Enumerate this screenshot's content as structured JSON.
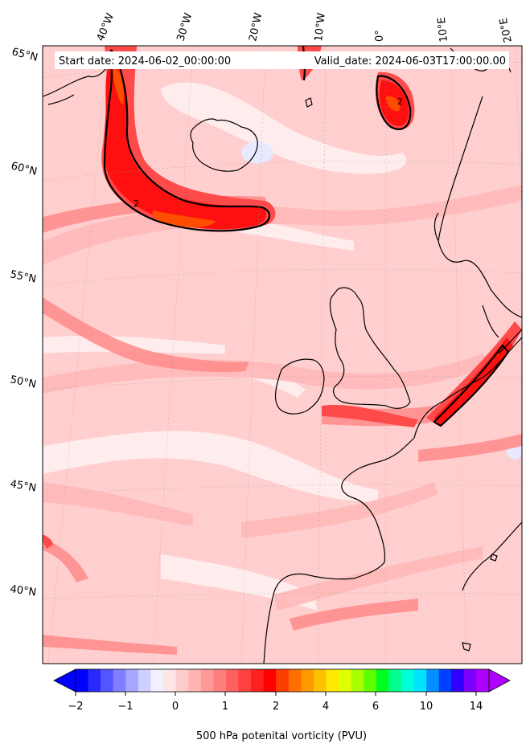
{
  "header": {
    "start_date": "Start date: 2024-06-02_00:00:00",
    "valid_date": "Valid_date: 2024-06-03T17:00:00.00"
  },
  "longitude_labels": [
    "40°W",
    "30°W",
    "20°W",
    "10°W",
    "0°",
    "10°E",
    "20°E"
  ],
  "latitude_labels": [
    "65°N",
    "60°N",
    "55°N",
    "50°N",
    "45°N",
    "40°N"
  ],
  "contour_label": "2",
  "colorbar": {
    "title": "500 hPa potenital vorticity (PVU)",
    "tick_labels": [
      "−2",
      "−1",
      "0",
      "1",
      "2",
      "4",
      "6",
      "10",
      "14"
    ],
    "colors": [
      "#0000ff",
      "#2a2aff",
      "#5555ff",
      "#7f7fff",
      "#a6a6ff",
      "#cfcfff",
      "#f0f0ff",
      "#ffe6e6",
      "#ffcccc",
      "#ffb3b3",
      "#ff9999",
      "#ff7f7f",
      "#ff6161",
      "#ff4040",
      "#ff2020",
      "#ff0000",
      "#ff3d00",
      "#ff6e00",
      "#ff9900",
      "#ffc000",
      "#ffe800",
      "#e0ff00",
      "#a8ff00",
      "#60ff00",
      "#00ff20",
      "#00ff90",
      "#00ffd8",
      "#00e4ff",
      "#0090ff",
      "#0040ff",
      "#3000ff",
      "#8000ff",
      "#b000ff"
    ]
  },
  "field_colors": {
    "base": "#ffcfcf",
    "pale": "#fff0f0",
    "light": "#ffb8b8",
    "mid": "#ff8a8a",
    "strong": "#ff4a4a",
    "red": "#ff1010",
    "orange": "#ff4d00",
    "blue_tint": "#e8e8ff"
  }
}
